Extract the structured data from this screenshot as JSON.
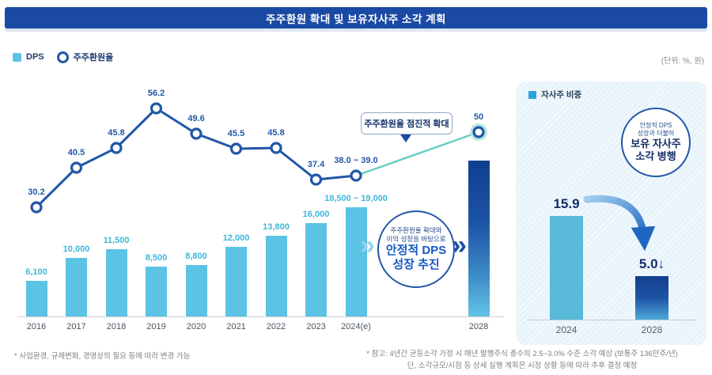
{
  "title": "주주환원 확대 및 보유자사주 소각 계획",
  "unit_label": "(단위: %, 원)",
  "legend": {
    "dps_label": "DPS",
    "return_label": "주주환원율"
  },
  "chart_data": [
    {
      "id": "dps_and_shareholder_return",
      "type": "bar",
      "categories": [
        "2016",
        "2017",
        "2018",
        "2019",
        "2020",
        "2021",
        "2022",
        "2023",
        "2024(e)",
        "2028"
      ],
      "series": [
        {
          "name": "DPS",
          "type": "bar",
          "unit": "원",
          "values": [
            6100,
            10000,
            11500,
            8500,
            8800,
            12000,
            13800,
            16000,
            18750,
            null
          ],
          "labels": [
            "6,100",
            "10,000",
            "11,500",
            "8,500",
            "8,800",
            "12,000",
            "13,800",
            "16,000",
            "18,500 ~ 19,000",
            ""
          ]
        },
        {
          "name": "주주환원율",
          "type": "line",
          "unit": "%",
          "values": [
            30.2,
            40.5,
            45.8,
            56.2,
            49.6,
            45.5,
            45.8,
            37.4,
            38.5,
            50
          ],
          "labels": [
            "30.2",
            "40.5",
            "45.8",
            "56.2",
            "49.6",
            "45.5",
            "45.8",
            "37.4",
            "38.0 ~ 39.0",
            "50"
          ]
        }
      ],
      "ylim_line": [
        28,
        60
      ],
      "grid": false,
      "legend_position": "top-left",
      "annotations": {
        "callout": "주주환원율 점진적 확대",
        "goal_circle": {
          "small_lines": [
            "주주환원율 확대와",
            "이익 성장을 바탕으로"
          ],
          "big_lines": [
            "안정적 DPS",
            "성장 추진"
          ]
        }
      }
    },
    {
      "id": "treasury_share_ratio",
      "type": "bar",
      "legend_label": "자사주 비중",
      "unit": "%",
      "categories": [
        "2024",
        "2028"
      ],
      "values": [
        15.9,
        5.0
      ],
      "labels": [
        "15.9",
        "5.0↓"
      ],
      "grid": false,
      "goal_circle": {
        "small_lines": [
          "안정적 DPS",
          "성장과 더불어"
        ],
        "big_lines": [
          "보유 자사주",
          "소각 병행"
        ]
      }
    }
  ],
  "footnotes": {
    "left": "* 사업환경, 규제변화, 경영상의 필요 등에 따라 변경 가능",
    "right_line1": "* 참고: 4년간 균등소각 가정 시 매년 발행주식 총수의 2.5~3.0% 수준 소각 예상 (보통주 136만주/년)",
    "right_line2": "단, 소각규모/시점 등 상세 실행 계획은 시장 상황 등에 따라 추후 결정 예정"
  },
  "colors": {
    "title_bar": "#1b4aa5",
    "bar_cyan": "#5bc3e4",
    "line_navy": "#2257a8",
    "teal_line": "#66cec0",
    "teal_halo": "#b9e7df",
    "label_cyan": "#41b6da",
    "dark_navy_text": "#142f66",
    "accent_blue_big_text": "#1659c2",
    "chevron_light": "#93d4ec",
    "panel_bg": "#e7f3fa",
    "panel_legend": "#2ba2dc",
    "footnote_gray": "#7f7f7f",
    "gradient_bar_top": "#0f3e8e",
    "gradient_bar_bottom": "#62c3e6"
  }
}
